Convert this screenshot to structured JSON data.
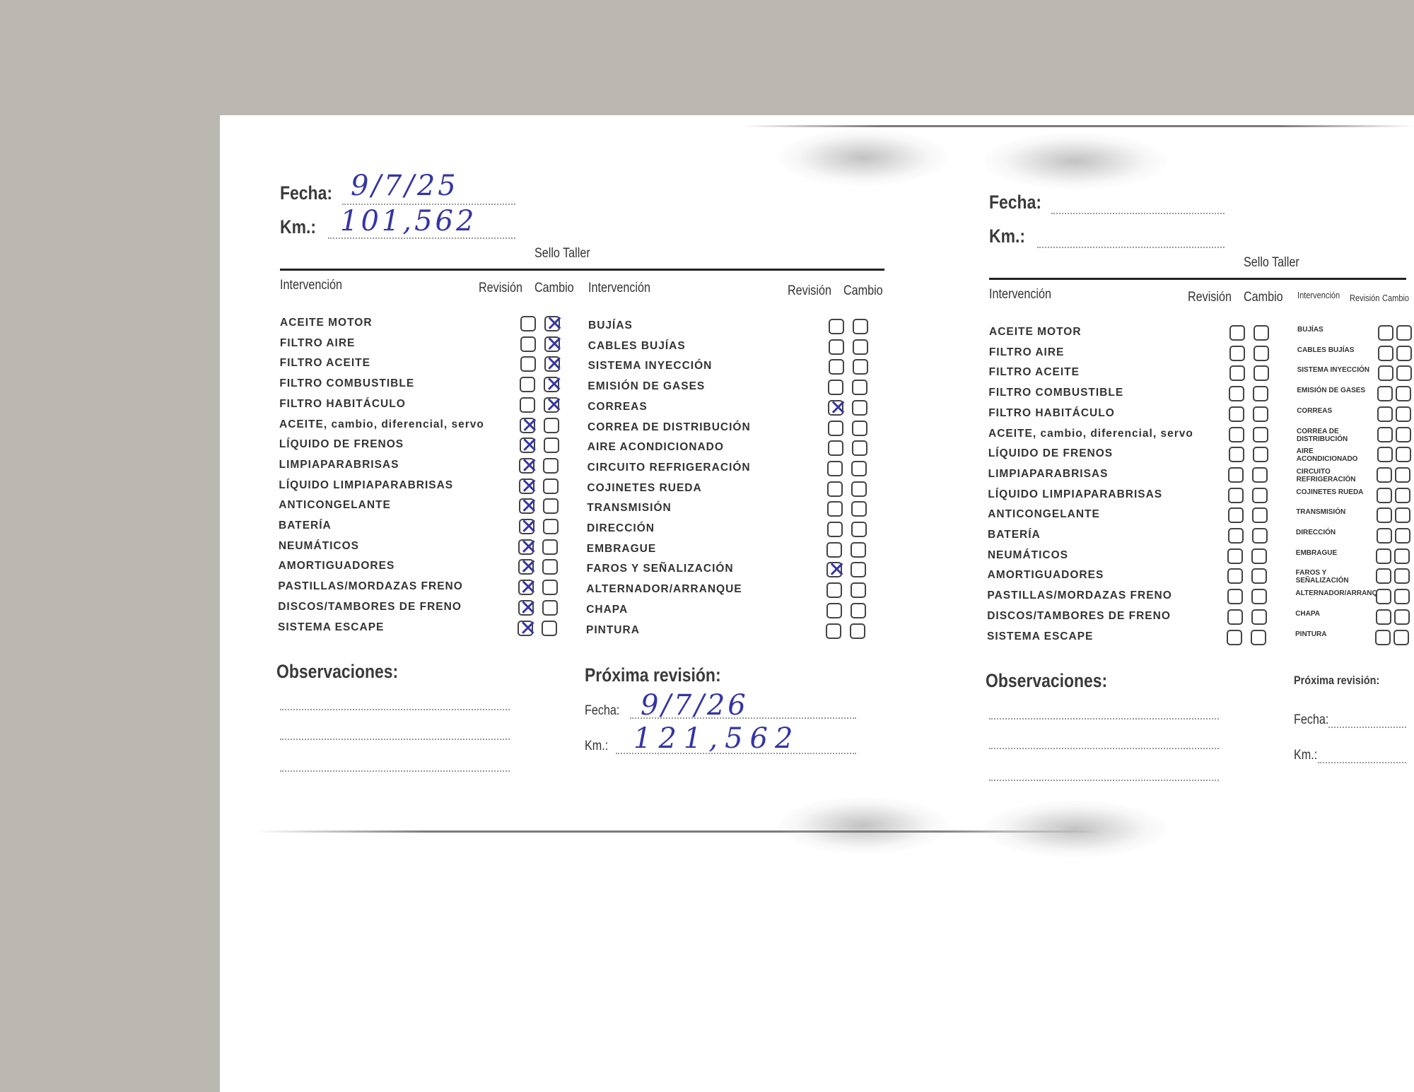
{
  "form": {
    "fecha_label": "Fecha:",
    "km_label": "Km.:",
    "sello_label": "Sello Taller",
    "col_intervencion": "Intervención",
    "col_revision": "Revisión",
    "col_cambio": "Cambio",
    "observaciones_label": "Observaciones:",
    "proxima_label": "Próxima revisión:",
    "proxima_fecha_label": "Fecha:",
    "proxima_km_label": "Km.:",
    "left_items": [
      "ACEITE MOTOR",
      "FILTRO AIRE",
      "FILTRO ACEITE",
      "FILTRO COMBUSTIBLE",
      "FILTRO HABITÁCULO",
      "ACEITE, cambio, diferencial, servo",
      "LÍQUIDO DE FRENOS",
      "LIMPIAPARABRISAS",
      "LÍQUIDO LIMPIAPARABRISAS",
      "ANTICONGELANTE",
      "BATERÍA",
      "NEUMÁTICOS",
      "AMORTIGUADORES",
      "PASTILLAS/MORDAZAS FRENO",
      "DISCOS/TAMBORES DE FRENO",
      "SISTEMA ESCAPE"
    ],
    "right_items": [
      "BUJÍAS",
      "CABLES BUJÍAS",
      "SISTEMA INYECCIÓN",
      "EMISIÓN DE GASES",
      "CORREAS",
      "CORREA DE DISTRIBUCIÓN",
      "AIRE ACONDICIONADO",
      "CIRCUITO REFRIGERACIÓN",
      "COJINETES RUEDA",
      "TRANSMISIÓN",
      "DIRECCIÓN",
      "EMBRAGUE",
      "FAROS Y SEÑALIZACIÓN",
      "ALTERNADOR/ARRANQUE",
      "CHAPA",
      "PINTURA"
    ]
  },
  "records": [
    {
      "fecha": "9/7/25",
      "km": "101,562",
      "proxima_fecha": "9/7/26",
      "proxima_km": "121,562",
      "left_revision": [
        false,
        false,
        false,
        false,
        false,
        true,
        true,
        true,
        true,
        true,
        true,
        true,
        true,
        true,
        true,
        true
      ],
      "left_cambio": [
        true,
        true,
        true,
        true,
        true,
        false,
        false,
        false,
        false,
        false,
        false,
        false,
        false,
        false,
        false,
        false
      ],
      "right_revision": [
        false,
        false,
        false,
        false,
        true,
        false,
        false,
        false,
        false,
        false,
        false,
        false,
        true,
        false,
        false,
        false
      ],
      "right_cambio": [
        false,
        false,
        false,
        false,
        false,
        false,
        false,
        false,
        false,
        false,
        false,
        false,
        false,
        false,
        false,
        false
      ]
    },
    {
      "fecha": "",
      "km": "",
      "proxima_fecha": "",
      "proxima_km": "",
      "left_revision": [],
      "left_cambio": [],
      "right_revision": [],
      "right_cambio": []
    }
  ],
  "colors": {
    "ink": "#3535a5",
    "background": "#bbb7b1",
    "paper": "#ffffff"
  }
}
